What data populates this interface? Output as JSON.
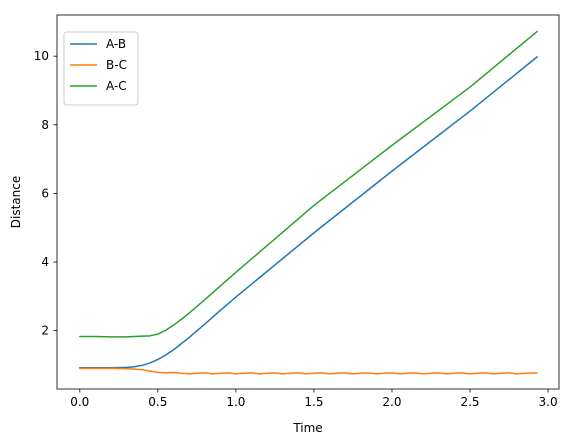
{
  "chart_data": {
    "type": "line",
    "title": "",
    "xlabel": "Time",
    "ylabel": "Distance",
    "xlim": [
      -0.146,
      3.07
    ],
    "ylim": [
      0.3,
      11.2
    ],
    "xticks": [
      "0.0",
      "0.5",
      "1.0",
      "1.5",
      "2.0",
      "2.5",
      "3.0"
    ],
    "yticks": [
      "2",
      "4",
      "6",
      "8",
      "10"
    ],
    "grid": false,
    "legend_position": "top-left",
    "series": [
      {
        "name": "A-B",
        "color": "#1f77b4",
        "x": [
          0.0,
          0.1,
          0.2,
          0.3,
          0.35,
          0.4,
          0.45,
          0.5,
          0.55,
          0.6,
          0.7,
          0.8,
          0.9,
          1.0,
          1.5,
          2.0,
          2.5,
          2.93
        ],
        "y": [
          0.92,
          0.92,
          0.92,
          0.93,
          0.95,
          0.99,
          1.06,
          1.16,
          1.29,
          1.44,
          1.8,
          2.19,
          2.59,
          2.98,
          4.85,
          6.65,
          8.4,
          9.98
        ]
      },
      {
        "name": "B-C",
        "color": "#ff7f0e",
        "x": [
          0.0,
          0.1,
          0.2,
          0.3,
          0.35,
          0.4,
          0.45,
          0.5,
          0.55,
          0.6,
          0.65,
          0.7,
          0.75,
          0.8,
          0.85,
          0.9,
          0.95,
          1.0,
          1.05,
          1.1,
          1.15,
          1.2,
          1.25,
          1.3,
          1.35,
          1.4,
          1.45,
          1.5,
          1.55,
          1.6,
          1.65,
          1.7,
          1.75,
          1.8,
          1.85,
          1.9,
          1.95,
          2.0,
          2.05,
          2.1,
          2.15,
          2.2,
          2.25,
          2.3,
          2.35,
          2.4,
          2.45,
          2.5,
          2.55,
          2.6,
          2.65,
          2.7,
          2.75,
          2.8,
          2.85,
          2.93
        ],
        "y": [
          0.9,
          0.9,
          0.9,
          0.89,
          0.88,
          0.86,
          0.82,
          0.78,
          0.77,
          0.78,
          0.76,
          0.74,
          0.76,
          0.77,
          0.74,
          0.76,
          0.77,
          0.74,
          0.76,
          0.77,
          0.74,
          0.76,
          0.77,
          0.74,
          0.76,
          0.77,
          0.74,
          0.76,
          0.77,
          0.74,
          0.76,
          0.77,
          0.74,
          0.76,
          0.77,
          0.74,
          0.76,
          0.77,
          0.74,
          0.76,
          0.77,
          0.74,
          0.76,
          0.77,
          0.74,
          0.76,
          0.77,
          0.74,
          0.76,
          0.77,
          0.74,
          0.76,
          0.77,
          0.74,
          0.76,
          0.77
        ]
      },
      {
        "name": "A-C",
        "color": "#2ca02c",
        "x": [
          0.0,
          0.1,
          0.2,
          0.3,
          0.35,
          0.4,
          0.45,
          0.5,
          0.55,
          0.6,
          0.65,
          0.7,
          0.8,
          0.9,
          1.0,
          1.5,
          2.0,
          2.5,
          2.93
        ],
        "y": [
          1.83,
          1.83,
          1.82,
          1.82,
          1.83,
          1.84,
          1.85,
          1.9,
          2.01,
          2.16,
          2.33,
          2.51,
          2.9,
          3.3,
          3.7,
          5.65,
          7.4,
          9.1,
          10.72
        ]
      }
    ]
  }
}
